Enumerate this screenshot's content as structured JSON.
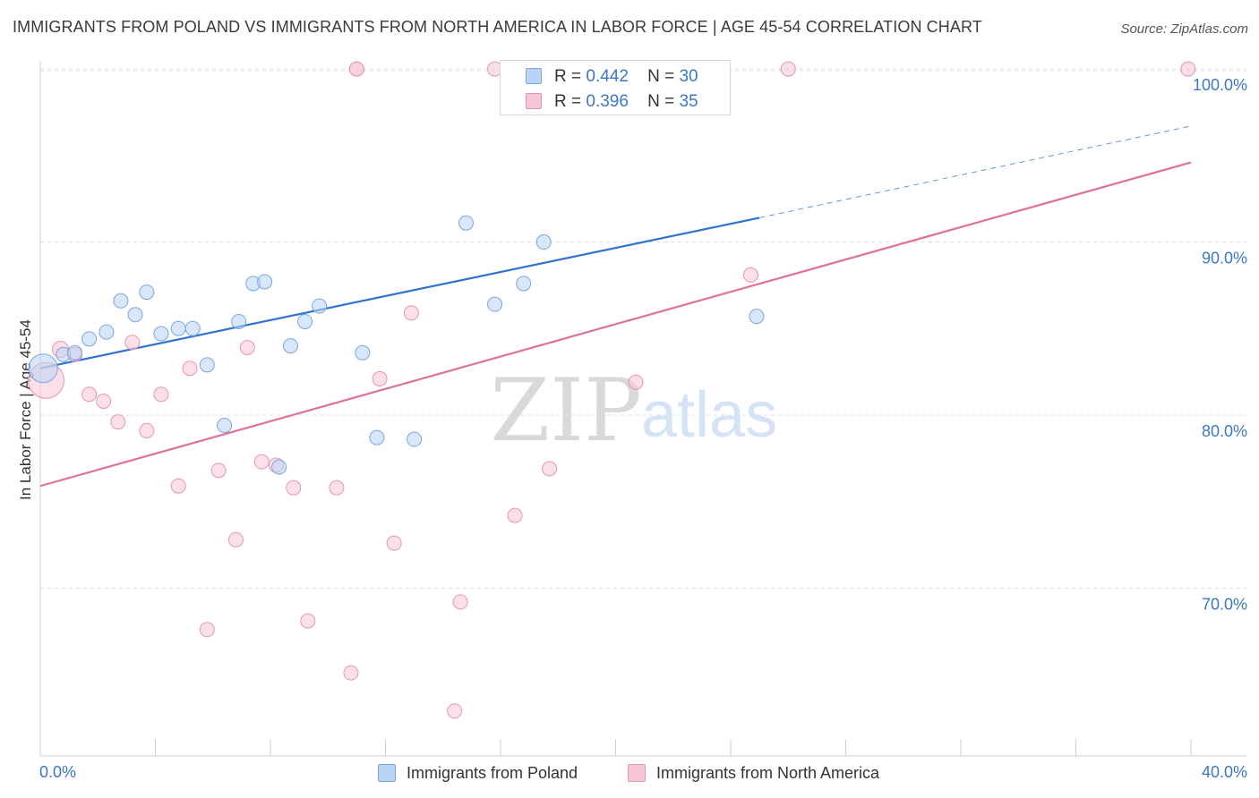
{
  "title": "IMMIGRANTS FROM POLAND VS IMMIGRANTS FROM NORTH AMERICA IN LABOR FORCE | AGE 45-54 CORRELATION CHART",
  "source": "Source: ZipAtlas.com",
  "watermark": {
    "zip": "ZIP",
    "atlas": "atlas"
  },
  "colors": {
    "poland_fill": "#b9d3f5",
    "poland_stroke": "#7aa6e0",
    "poland_line": "#2f72d0",
    "na_fill": "#f7c6d4",
    "na_stroke": "#e895b0",
    "na_line": "#e07097",
    "value_text": "#3b77c9"
  },
  "legend_stats": [
    {
      "r_label": "R =",
      "r_value": "0.442",
      "n_label": "N =",
      "n_value": "30"
    },
    {
      "r_label": "R =",
      "r_value": "0.396",
      "n_label": "N =",
      "n_value": "35"
    }
  ],
  "chart_data": {
    "type": "scatter",
    "title": "IMMIGRANTS FROM POLAND VS IMMIGRANTS FROM NORTH AMERICA IN LABOR FORCE | AGE 45-54 CORRELATION CHART",
    "xlabel": "",
    "ylabel": "In Labor Force | Age 45-54",
    "xlim": [
      0,
      40
    ],
    "ylim": [
      60.3,
      101.4
    ],
    "x_tick_labels": [
      "0.0%",
      "40.0%"
    ],
    "y_ticks": [
      70,
      80,
      90,
      100
    ],
    "y_tick_labels": [
      "70.0%",
      "80.0%",
      "90.0%",
      "100.0%"
    ],
    "grid": "horizontal dashed",
    "legend_position": "bottom",
    "series": [
      {
        "name": "Immigrants from Poland",
        "r": 0.442,
        "n": 30,
        "trend": {
          "x0": 0,
          "y0": 82.7,
          "x1": 25,
          "y1": 91.4,
          "dashed_to_x": 40,
          "dashed_to_y": 96.7
        },
        "points": [
          [
            0.1,
            82.7,
            16
          ],
          [
            0.8,
            83.5,
            8
          ],
          [
            1.7,
            84.4,
            8
          ],
          [
            2.3,
            84.8,
            8
          ],
          [
            2.8,
            86.6,
            8
          ],
          [
            3.3,
            85.8,
            8
          ],
          [
            3.7,
            87.1,
            8
          ],
          [
            4.2,
            84.7,
            8
          ],
          [
            4.8,
            85.0,
            8
          ],
          [
            5.3,
            85.0,
            8
          ],
          [
            5.8,
            82.9,
            8
          ],
          [
            6.4,
            79.4,
            8
          ],
          [
            6.9,
            85.4,
            8
          ],
          [
            7.4,
            87.6,
            8
          ],
          [
            7.8,
            87.7,
            8
          ],
          [
            8.3,
            77.0,
            8
          ],
          [
            8.7,
            84.0,
            8
          ],
          [
            9.2,
            85.4,
            8
          ],
          [
            9.7,
            86.3,
            8
          ],
          [
            11.2,
            83.6,
            8
          ],
          [
            11.7,
            78.7,
            8
          ],
          [
            13.0,
            78.6,
            8
          ],
          [
            14.8,
            91.1,
            8
          ],
          [
            15.8,
            86.4,
            8
          ],
          [
            16.3,
            100.0,
            8
          ],
          [
            16.8,
            87.6,
            8
          ],
          [
            17.5,
            90.0,
            8
          ],
          [
            19.5,
            100.0,
            8
          ],
          [
            24.9,
            85.7,
            8
          ],
          [
            1.2,
            83.6,
            8
          ]
        ]
      },
      {
        "name": "Immigrants from North America",
        "r": 0.396,
        "n": 35,
        "trend": {
          "x0": 0,
          "y0": 75.9,
          "x1": 40,
          "y1": 94.6
        },
        "points": [
          [
            0.2,
            82.0,
            20
          ],
          [
            0.7,
            83.8,
            9
          ],
          [
            1.2,
            83.5,
            8
          ],
          [
            1.7,
            81.2,
            8
          ],
          [
            2.2,
            80.8,
            8
          ],
          [
            2.7,
            79.6,
            8
          ],
          [
            3.2,
            84.2,
            8
          ],
          [
            3.7,
            79.1,
            8
          ],
          [
            4.2,
            81.2,
            8
          ],
          [
            4.8,
            75.9,
            8
          ],
          [
            5.2,
            82.7,
            8
          ],
          [
            5.8,
            67.6,
            8
          ],
          [
            6.2,
            76.8,
            8
          ],
          [
            6.8,
            72.8,
            8
          ],
          [
            7.2,
            83.9,
            8
          ],
          [
            7.7,
            77.3,
            8
          ],
          [
            8.2,
            77.1,
            8
          ],
          [
            8.8,
            75.8,
            8
          ],
          [
            9.3,
            68.1,
            8
          ],
          [
            10.3,
            75.8,
            8
          ],
          [
            10.8,
            65.1,
            8
          ],
          [
            11.0,
            100.0,
            8
          ],
          [
            11.8,
            82.1,
            8
          ],
          [
            12.3,
            72.6,
            8
          ],
          [
            12.9,
            85.9,
            8
          ],
          [
            14.4,
            62.9,
            8
          ],
          [
            14.6,
            69.2,
            8
          ],
          [
            15.8,
            100.0,
            8
          ],
          [
            16.5,
            74.2,
            8
          ],
          [
            17.7,
            76.9,
            8
          ],
          [
            20.7,
            81.9,
            8
          ],
          [
            24.7,
            88.1,
            8
          ],
          [
            26.0,
            100.0,
            8
          ],
          [
            39.9,
            100.0,
            8
          ],
          [
            11.0,
            100.0,
            8
          ]
        ]
      }
    ]
  }
}
